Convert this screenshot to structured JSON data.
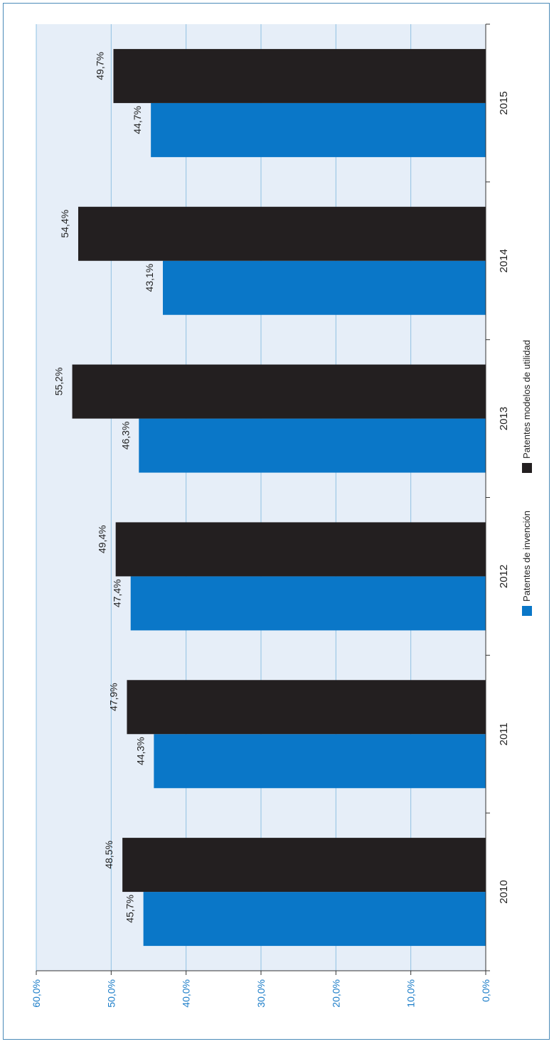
{
  "chart_data": {
    "type": "bar",
    "orientation": "horizontal",
    "categories": [
      "2010",
      "2011",
      "2012",
      "2013",
      "2014",
      "2015"
    ],
    "series": [
      {
        "name": "Patentes de invención",
        "color": "#0a77c8",
        "values": [
          45.7,
          44.3,
          47.4,
          46.3,
          43.1,
          44.7
        ],
        "labels": [
          "45,7%",
          "44,3%",
          "47,4%",
          "46,3%",
          "43,1%",
          "44,7%"
        ]
      },
      {
        "name": "Patentes modelos de utilidad",
        "color": "#231f20",
        "values": [
          48.5,
          47.9,
          49.4,
          55.2,
          54.4,
          49.7
        ],
        "labels": [
          "48,5%",
          "47,9%",
          "49,4%",
          "55,2%",
          "54,4%",
          "49,7%"
        ]
      }
    ],
    "value_axis": {
      "min": 0,
      "max": 60,
      "ticks": [
        0,
        10,
        20,
        30,
        40,
        50,
        60
      ],
      "tick_labels": [
        "0,0%",
        "10,0%",
        "20,0%",
        "30,0%",
        "40,0%",
        "50,0%",
        "60,0%"
      ],
      "tick_color": "#1a7cc8"
    },
    "grid": true,
    "plot_background": "#e6eef8",
    "grid_color": "#8fc1e3",
    "legend_position": "right"
  }
}
